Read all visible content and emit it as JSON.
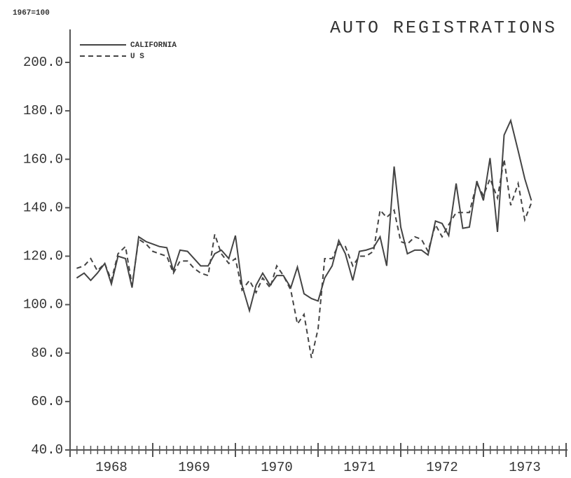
{
  "chart_data": {
    "type": "line",
    "title": "AUTO REGISTRATIONS",
    "subtitle": "1967=100",
    "x": [
      1968.08,
      1968.17,
      1968.25,
      1968.33,
      1968.42,
      1968.5,
      1968.58,
      1968.67,
      1968.75,
      1968.83,
      1968.92,
      1969.0,
      1969.08,
      1969.17,
      1969.25,
      1969.33,
      1969.42,
      1969.5,
      1969.58,
      1969.67,
      1969.75,
      1969.83,
      1969.92,
      1970.0,
      1970.08,
      1970.17,
      1970.25,
      1970.33,
      1970.42,
      1970.5,
      1970.58,
      1970.67,
      1970.75,
      1970.83,
      1970.92,
      1971.0,
      1971.08,
      1971.17,
      1971.25,
      1971.33,
      1971.42,
      1971.5,
      1971.58,
      1971.67,
      1971.75,
      1971.83,
      1971.92,
      1972.0,
      1972.08,
      1972.17,
      1972.25,
      1972.33,
      1972.42,
      1972.5,
      1972.58,
      1972.67,
      1972.75,
      1972.83,
      1972.92,
      1973.0,
      1973.08,
      1973.17,
      1973.25,
      1973.33,
      1973.42,
      1973.5,
      1973.58
    ],
    "series": [
      {
        "name": "CALIFORNIA",
        "color": "#444444",
        "dash": false,
        "values": [
          111,
          113,
          110,
          113,
          117,
          108.5,
          120,
          119,
          107,
          128,
          126,
          125,
          124,
          123.5,
          114,
          122.5,
          122,
          119,
          116,
          116,
          121,
          122.5,
          119,
          128.5,
          108,
          97.5,
          108,
          113,
          108,
          112,
          112,
          107,
          115.5,
          104.5,
          102.5,
          101.5,
          111,
          116,
          126.5,
          121,
          110,
          122,
          122.5,
          123.5,
          128,
          116,
          157,
          132,
          121,
          122.5,
          122.5,
          120.5,
          134.5,
          133.5,
          128.5,
          150,
          131.5,
          132,
          151,
          143,
          160.5,
          130,
          170,
          176,
          163.5,
          152,
          143
        ]
      },
      {
        "name": "U S",
        "color": "#444444",
        "dash": true,
        "values": [
          115,
          116,
          119,
          114,
          117,
          110,
          121,
          124,
          108,
          127,
          125,
          122,
          121,
          120,
          113,
          118,
          118,
          115,
          113,
          112,
          129,
          121,
          117,
          119,
          106,
          110,
          105,
          111,
          107,
          116,
          112,
          106,
          92,
          96,
          78,
          90,
          119,
          119,
          125,
          124,
          116,
          120,
          120,
          122,
          139,
          136,
          139,
          126,
          125,
          128,
          127,
          122,
          133,
          128,
          133,
          138,
          138,
          138,
          150,
          145,
          152,
          144,
          160,
          141,
          150,
          135,
          142
        ]
      }
    ],
    "year_labels": [
      "1968",
      "1969",
      "1970",
      "1971",
      "1972",
      "1973"
    ],
    "xlim": [
      1968,
      1974
    ],
    "xticks": [
      1968,
      1969,
      1970,
      1971,
      1972,
      1973,
      1974
    ],
    "ylim": [
      40,
      200
    ],
    "yticks": [
      {
        "value": 40,
        "label": "40.0"
      },
      {
        "value": 60,
        "label": "60.0"
      },
      {
        "value": 80,
        "label": "80.0"
      },
      {
        "value": 100,
        "label": "100.0"
      },
      {
        "value": 120,
        "label": "120.0"
      },
      {
        "value": 140,
        "label": "140.0"
      },
      {
        "value": 160,
        "label": "160.0"
      },
      {
        "value": 180,
        "label": "180.0"
      },
      {
        "value": 200,
        "label": "200.0"
      }
    ],
    "legend": "top-left"
  }
}
